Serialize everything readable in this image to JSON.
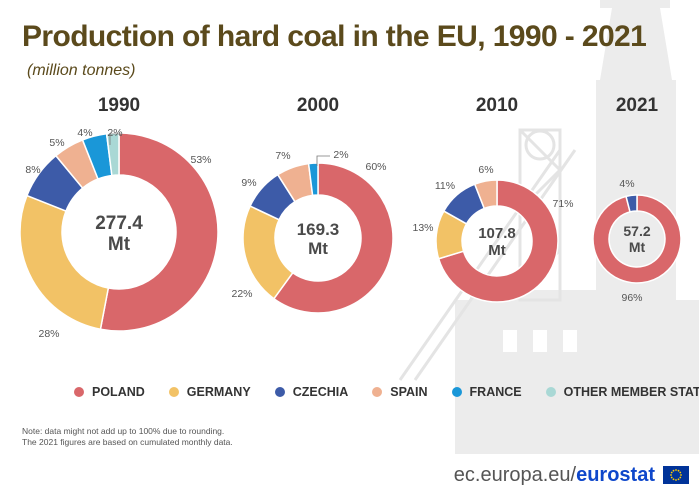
{
  "title": "Production of hard coal in the EU, 1990 - 2021",
  "subtitle": "(million tonnes)",
  "chart_data": {
    "type": "donut",
    "title": "Production of hard coal in the EU, 1990 - 2021",
    "subtitle": "(million tonnes)",
    "categories": [
      "POLAND",
      "GERMANY",
      "CZECHIA",
      "SPAIN",
      "FRANCE",
      "OTHER MEMBER STATES"
    ],
    "colors": [
      "#d9676a",
      "#f2c266",
      "#3d5ba8",
      "#efb191",
      "#1a97d8",
      "#a9d8d5"
    ],
    "charts": [
      {
        "year": "1990",
        "total_label": "277.4",
        "unit": "Mt",
        "total": 277.4,
        "shares": [
          53,
          28,
          8,
          5,
          4,
          2
        ],
        "labels": [
          "53%",
          "28%",
          "8%",
          "5%",
          "4%",
          "2%"
        ]
      },
      {
        "year": "2000",
        "total_label": "169.3",
        "unit": "Mt",
        "total": 169.3,
        "shares": [
          60,
          22,
          9,
          7,
          2,
          0
        ],
        "labels": [
          "60%",
          "22%",
          "9%",
          "7%",
          "2%",
          ""
        ]
      },
      {
        "year": "2010",
        "total_label": "107.8",
        "unit": "Mt",
        "total": 107.8,
        "shares": [
          71,
          13,
          11,
          6,
          0,
          0
        ],
        "labels": [
          "71%",
          "13%",
          "11%",
          "6%",
          "",
          ""
        ]
      },
      {
        "year": "2021",
        "total_label": "57.2",
        "unit": "Mt",
        "total": 57.2,
        "shares": [
          96,
          0,
          4,
          0,
          0,
          0
        ],
        "labels": [
          "96%",
          "",
          "4%",
          "",
          "",
          ""
        ]
      }
    ]
  },
  "legend": {
    "items": [
      {
        "label": "POLAND",
        "color": "#d9676a"
      },
      {
        "label": "GERMANY",
        "color": "#f2c266"
      },
      {
        "label": "CZECHIA",
        "color": "#3d5ba8"
      },
      {
        "label": "SPAIN",
        "color": "#efb191"
      },
      {
        "label": "FRANCE",
        "color": "#1a97d8"
      },
      {
        "label": "OTHER MEMBER STATES",
        "color": "#a9d8d5"
      }
    ]
  },
  "note": {
    "line1": "Note: data might not add up to 100% due to rounding.",
    "line2": "The 2021 figures are based on cumulated monthly data."
  },
  "footer": {
    "url_prefix": "ec.europa.eu/",
    "url_brand": "eurostat"
  }
}
